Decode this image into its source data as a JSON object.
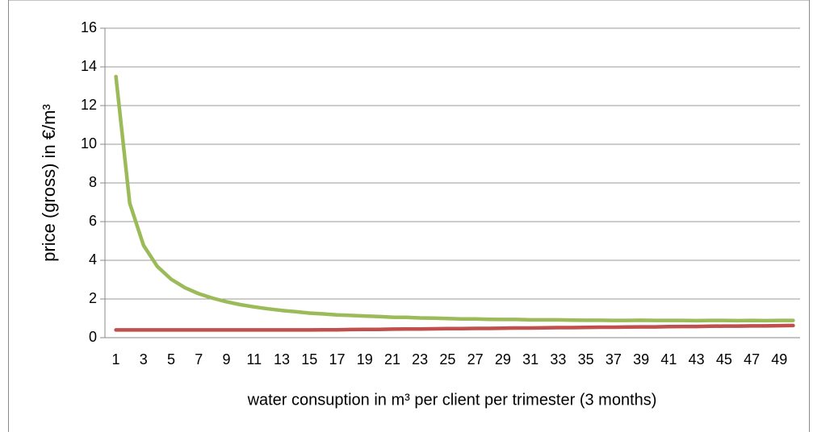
{
  "chart_data": {
    "type": "line",
    "y_label": "price (gross) in €/m³",
    "x_label": "water consuption in m³ per client per trimester (3 months)",
    "categories": [
      1,
      null,
      3,
      null,
      5,
      null,
      7,
      null,
      9,
      null,
      11,
      null,
      13,
      null,
      15,
      null,
      17,
      null,
      19,
      null,
      21,
      null,
      23,
      null,
      25,
      null,
      27,
      null,
      29,
      null,
      31,
      null,
      33,
      null,
      35,
      null,
      37,
      null,
      39,
      null,
      41,
      null,
      43,
      null,
      45,
      null,
      47,
      null,
      49,
      null
    ],
    "series": [
      {
        "color": "#9bbb59",
        "values": [
          13.5,
          6.95,
          4.77,
          3.68,
          3.02,
          2.58,
          2.27,
          2.04,
          1.86,
          1.71,
          1.59,
          1.49,
          1.41,
          1.34,
          1.27,
          1.23,
          1.18,
          1.15,
          1.12,
          1.09,
          1.06,
          1.05,
          1.02,
          1.01,
          0.99,
          0.97,
          0.97,
          0.95,
          0.94,
          0.94,
          0.92,
          0.92,
          0.92,
          0.91,
          0.9,
          0.9,
          0.89,
          0.89,
          0.9,
          0.89,
          0.89,
          0.89,
          0.88,
          0.89,
          0.89,
          0.88,
          0.89,
          0.88,
          0.89,
          0.89
        ]
      },
      {
        "color": "#c0504d",
        "values": [
          0.4,
          0.4,
          0.4,
          0.4,
          0.4,
          0.4,
          0.4,
          0.4,
          0.4,
          0.4,
          0.4,
          0.4,
          0.4,
          0.4,
          0.4,
          0.41,
          0.41,
          0.42,
          0.43,
          0.43,
          0.44,
          0.45,
          0.45,
          0.46,
          0.47,
          0.47,
          0.48,
          0.48,
          0.49,
          0.5,
          0.5,
          0.51,
          0.52,
          0.52,
          0.53,
          0.54,
          0.54,
          0.55,
          0.56,
          0.56,
          0.57,
          0.58,
          0.58,
          0.59,
          0.6,
          0.6,
          0.61,
          0.61,
          0.62,
          0.63
        ]
      }
    ],
    "ylim": [
      0,
      16
    ],
    "yticks": [
      0,
      2,
      4,
      6,
      8,
      10,
      12,
      14,
      16
    ],
    "grid": true
  }
}
